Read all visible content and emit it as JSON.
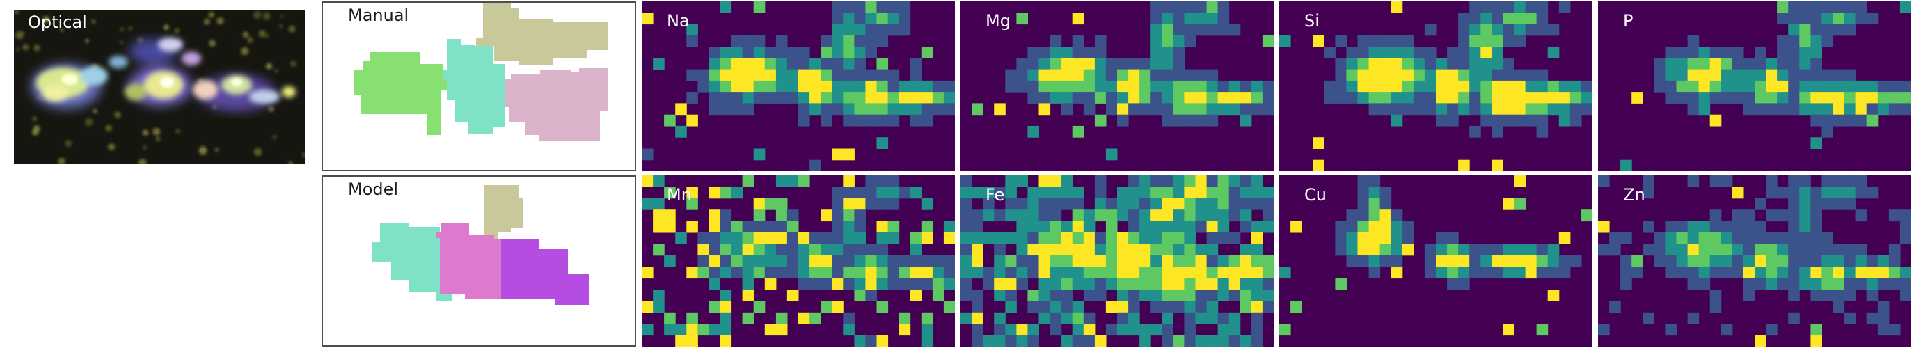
{
  "optical": {
    "label": "Optical"
  },
  "segmentations": {
    "manual": {
      "label": "Manual"
    },
    "model": {
      "label": "Model"
    }
  },
  "element_maps": [
    {
      "label": "Na"
    },
    {
      "label": "Mg"
    },
    {
      "label": "Si"
    },
    {
      "label": "P"
    },
    {
      "label": "Mn"
    },
    {
      "label": "Fe"
    },
    {
      "label": "Cu"
    },
    {
      "label": "Zn"
    }
  ],
  "colors": {
    "manual_regions": [
      "#87e070",
      "#7fe2c7",
      "#c9c89b",
      "#dbb4cc"
    ],
    "model_regions": [
      "#7fe2c7",
      "#dd7acd",
      "#b54de2",
      "#c9c89b"
    ],
    "colormap": [
      "#440154",
      "#3b528b",
      "#21918c",
      "#5ec962",
      "#fde725"
    ]
  }
}
